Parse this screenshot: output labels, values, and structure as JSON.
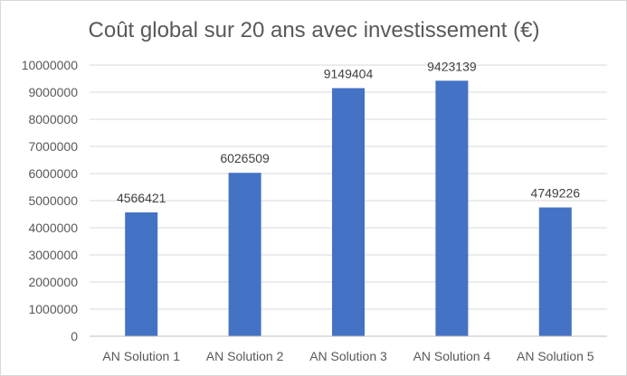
{
  "chart_data": {
    "type": "bar",
    "title": "Coût global sur 20 ans avec investissement (€)",
    "xlabel": "",
    "ylabel": "",
    "categories": [
      "AN Solution 1",
      "AN Solution 2",
      "AN Solution 3",
      "AN Solution 4",
      "AN Solution 5"
    ],
    "values": [
      4566421,
      6026509,
      9149404,
      9423139,
      4749226
    ],
    "data_labels": [
      "4566421",
      "6026509",
      "9149404",
      "9423139",
      "4749226"
    ],
    "ylim": [
      0,
      10000000
    ],
    "yticks": [
      0,
      1000000,
      2000000,
      3000000,
      4000000,
      5000000,
      6000000,
      7000000,
      8000000,
      9000000,
      10000000
    ],
    "ytick_labels": [
      "0",
      "1000000",
      "2000000",
      "3000000",
      "4000000",
      "5000000",
      "6000000",
      "7000000",
      "8000000",
      "9000000",
      "10000000"
    ],
    "grid": true,
    "legend": "none",
    "colors": {
      "bar": "#4472c4",
      "grid": "#d9d9d9",
      "axis": "#bfbfbf",
      "text": "#595959",
      "frame": "#d9d9d9"
    }
  }
}
